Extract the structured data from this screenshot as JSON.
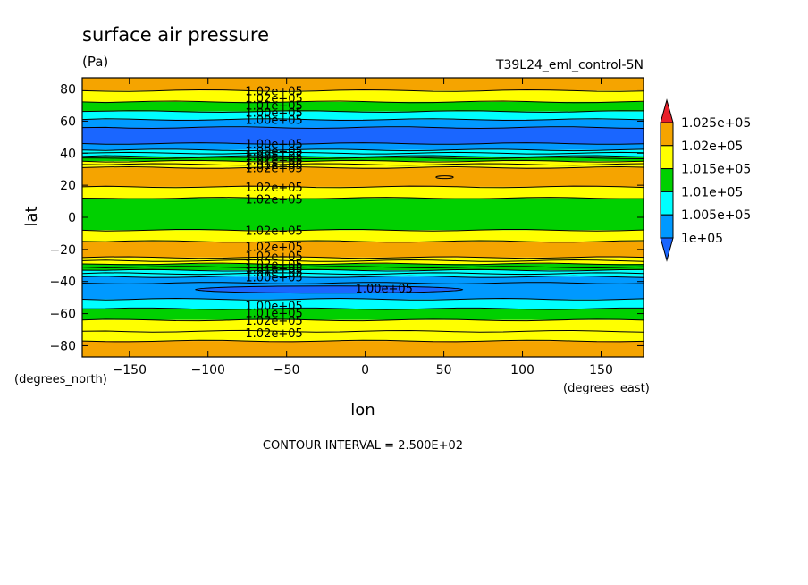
{
  "chart_data": {
    "type": "heatmap",
    "title": "surface air pressure",
    "units": "(Pa)",
    "dataset": "T39L24_eml_control-5N",
    "xlabel": "lon",
    "ylabel": "lat",
    "x_units": "(degrees_east)",
    "y_units": "(degrees_north)",
    "xlim": [
      -180,
      177
    ],
    "ylim": [
      -87,
      87
    ],
    "x_ticks": [
      {
        "value": -150,
        "label": "−150"
      },
      {
        "value": -100,
        "label": "−100"
      },
      {
        "value": -50,
        "label": "−50"
      },
      {
        "value": 0,
        "label": "0"
      },
      {
        "value": 50,
        "label": "50"
      },
      {
        "value": 100,
        "label": "100"
      },
      {
        "value": 150,
        "label": "150"
      }
    ],
    "y_ticks": [
      {
        "value": 80,
        "label": "80"
      },
      {
        "value": 60,
        "label": "60"
      },
      {
        "value": 40,
        "label": "40"
      },
      {
        "value": 20,
        "label": "20"
      },
      {
        "value": 0,
        "label": "0"
      },
      {
        "value": -20,
        "label": "−20"
      },
      {
        "value": -40,
        "label": "−40"
      },
      {
        "value": -60,
        "label": "−60"
      },
      {
        "value": -80,
        "label": "−80"
      }
    ],
    "contour_interval_text": "CONTOUR INTERVAL = 2.500E+02",
    "colorbar": {
      "levels": [
        {
          "label": "1.025e+05",
          "value": 102500
        },
        {
          "label": "1.02e+05",
          "value": 102000
        },
        {
          "label": "1.015e+05",
          "value": 101500
        },
        {
          "label": "1.01e+05",
          "value": 101000
        },
        {
          "label": "1.005e+05",
          "value": 100500
        },
        {
          "label": "1e+05",
          "value": 100000
        }
      ],
      "colors": {
        "over": "#e8202a",
        "c1025": "#f5a400",
        "c1020": "#ffff00",
        "c1015": "#00d000",
        "c1010": "#00ffff",
        "c1005": "#0099ff",
        "under": "#1a66ff"
      }
    },
    "bands": [
      {
        "lat_top": 87,
        "lat_bottom": 79,
        "color": "#f5a400"
      },
      {
        "lat_top": 79,
        "lat_bottom": 72,
        "color": "#ffff00"
      },
      {
        "lat_top": 72,
        "lat_bottom": 66,
        "color": "#00d000"
      },
      {
        "lat_top": 66,
        "lat_bottom": 61,
        "color": "#00ffff"
      },
      {
        "lat_top": 61,
        "lat_bottom": 56,
        "color": "#0099ff"
      },
      {
        "lat_top": 56,
        "lat_bottom": 46,
        "color": "#1a66ff"
      },
      {
        "lat_top": 46,
        "lat_bottom": 42,
        "color": "#0099ff"
      },
      {
        "lat_top": 42,
        "lat_bottom": 38,
        "color": "#00ffff"
      },
      {
        "lat_top": 38,
        "lat_bottom": 35,
        "color": "#00d000"
      },
      {
        "lat_top": 35,
        "lat_bottom": 31,
        "color": "#ffff00"
      },
      {
        "lat_top": 31,
        "lat_bottom": 19,
        "color": "#f5a400"
      },
      {
        "lat_top": 19,
        "lat_bottom": 12,
        "color": "#ffff00"
      },
      {
        "lat_top": 12,
        "lat_bottom": -8,
        "color": "#00d000"
      },
      {
        "lat_top": -8,
        "lat_bottom": -15,
        "color": "#ffff00"
      },
      {
        "lat_top": -15,
        "lat_bottom": -25,
        "color": "#f5a400"
      },
      {
        "lat_top": -25,
        "lat_bottom": -29,
        "color": "#ffff00"
      },
      {
        "lat_top": -29,
        "lat_bottom": -33,
        "color": "#00d000"
      },
      {
        "lat_top": -33,
        "lat_bottom": -37,
        "color": "#00ffff"
      },
      {
        "lat_top": -37,
        "lat_bottom": -41,
        "color": "#0099ff"
      },
      {
        "lat_top": -41,
        "lat_bottom": -51,
        "color": "#0099ff"
      },
      {
        "lat_top": -51,
        "lat_bottom": -57,
        "color": "#00ffff"
      },
      {
        "lat_top": -57,
        "lat_bottom": -64,
        "color": "#00d000"
      },
      {
        "lat_top": -64,
        "lat_bottom": -71,
        "color": "#ffff00"
      },
      {
        "lat_top": -71,
        "lat_bottom": -77,
        "color": "#ffff00"
      },
      {
        "lat_top": -77,
        "lat_bottom": -87,
        "color": "#f5a400"
      }
    ],
    "contour_lines_lat": [
      79,
      72,
      66,
      61,
      56,
      46,
      42,
      40,
      38,
      37,
      35,
      33,
      31,
      19,
      12,
      -8,
      -15,
      -25,
      -27,
      -29,
      -31,
      -33,
      -35,
      -37,
      -41,
      -51,
      -57,
      -64,
      -71,
      -77
    ],
    "closed_contours": [
      {
        "label": "1.00e+05",
        "lon_min": -108,
        "lon_max": 62,
        "lat_center": -45,
        "lat_half_height": 2.2,
        "color": "#1a66ff",
        "label_lon": 12
      }
    ],
    "contour_labels": [
      {
        "text": "1.02e+05",
        "lon": -58,
        "lat": 79
      },
      {
        "text": "1.02e+05",
        "lon": -58,
        "lat": 74.5
      },
      {
        "text": "1.01e+05",
        "lon": -58,
        "lat": 70
      },
      {
        "text": "1.00e+05",
        "lon": -58,
        "lat": 65.5
      },
      {
        "text": "1.00e+05",
        "lon": -58,
        "lat": 61
      },
      {
        "text": "1.00e+05",
        "lon": -58,
        "lat": 46
      },
      {
        "text": "1.00e+05",
        "lon": -58,
        "lat": 41.5
      },
      {
        "text": "1.00e+05",
        "lon": -58,
        "lat": 38.5
      },
      {
        "text": "1.01e+05",
        "lon": -58,
        "lat": 36
      },
      {
        "text": "1.01e+05",
        "lon": -58,
        "lat": 33
      },
      {
        "text": "1.02e+05",
        "lon": -58,
        "lat": 31
      },
      {
        "text": "1.02e+05",
        "lon": -58,
        "lat": 19
      },
      {
        "text": "1.02e+05",
        "lon": -58,
        "lat": 11.5
      },
      {
        "text": "1.02e+05",
        "lon": -58,
        "lat": -8
      },
      {
        "text": "1.02e+05",
        "lon": -58,
        "lat": -18
      },
      {
        "text": "1.02e+05",
        "lon": -58,
        "lat": -24
      },
      {
        "text": "1.02e+05",
        "lon": -58,
        "lat": -29
      },
      {
        "text": "1.01e+05",
        "lon": -58,
        "lat": -31.5
      },
      {
        "text": "1.01e+05",
        "lon": -58,
        "lat": -34
      },
      {
        "text": "1.00e+05",
        "lon": -58,
        "lat": -37
      },
      {
        "text": "1.00e+05",
        "lon": 12,
        "lat": -44
      },
      {
        "text": "1.00e+05",
        "lon": -58,
        "lat": -55
      },
      {
        "text": "1.01e+05",
        "lon": -58,
        "lat": -59.5
      },
      {
        "text": "1.02e+05",
        "lon": -58,
        "lat": -64
      },
      {
        "text": "1.02e+05",
        "lon": -58,
        "lat": -72
      }
    ]
  }
}
